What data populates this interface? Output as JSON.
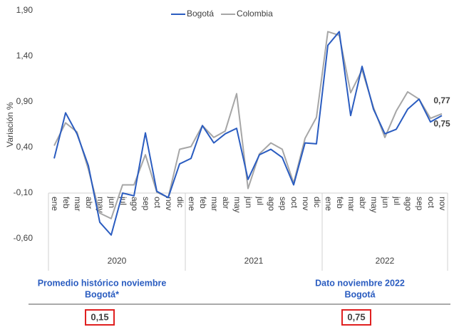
{
  "chart_data": {
    "type": "line",
    "y_label": "Variación %",
    "categories": [
      "ene",
      "feb",
      "mar",
      "abr",
      "may",
      "jun",
      "jul",
      "ago",
      "sep",
      "oct",
      "nov",
      "dic",
      "ene",
      "feb",
      "mar",
      "abr",
      "may",
      "jun",
      "jul",
      "ago",
      "sep",
      "oct",
      "nov",
      "dic",
      "ene",
      "feb",
      "mar",
      "abr",
      "may",
      "jun",
      "jul",
      "ago",
      "sep",
      "oct",
      "nov"
    ],
    "groups": [
      {
        "name": "2020",
        "count": 12
      },
      {
        "name": "2021",
        "count": 12
      },
      {
        "name": "2022",
        "count": 11
      }
    ],
    "series": [
      {
        "name": "Bogotá",
        "color": "#2a5cc0",
        "values": [
          0.28,
          0.78,
          0.55,
          0.2,
          -0.42,
          -0.56,
          -0.1,
          -0.13,
          0.56,
          -0.08,
          -0.15,
          0.22,
          0.28,
          0.64,
          0.45,
          0.55,
          0.61,
          0.05,
          0.32,
          0.38,
          0.29,
          -0.01,
          0.45,
          0.44,
          1.52,
          1.67,
          0.75,
          1.29,
          0.82,
          0.55,
          0.6,
          0.82,
          0.93,
          0.68,
          0.75
        ],
        "value_labels": [
          null,
          null,
          null,
          null,
          null,
          null,
          null,
          null,
          null,
          null,
          null,
          null,
          null,
          null,
          null,
          null,
          null,
          null,
          null,
          null,
          null,
          null,
          null,
          null,
          null,
          null,
          null,
          null,
          null,
          null,
          null,
          null,
          null,
          null,
          "0,75"
        ]
      },
      {
        "name": "Colombia",
        "color": "#a6a6a6",
        "values": [
          0.42,
          0.67,
          0.57,
          0.16,
          -0.32,
          -0.38,
          -0.01,
          -0.01,
          0.32,
          -0.09,
          -0.15,
          0.38,
          0.41,
          0.64,
          0.51,
          0.58,
          0.99,
          -0.05,
          0.33,
          0.45,
          0.38,
          0.01,
          0.5,
          0.73,
          1.67,
          1.63,
          1.0,
          1.25,
          0.84,
          0.51,
          0.8,
          1.01,
          0.93,
          0.72,
          0.77
        ],
        "value_labels": [
          null,
          null,
          null,
          null,
          null,
          null,
          null,
          null,
          null,
          null,
          null,
          null,
          null,
          null,
          null,
          null,
          null,
          null,
          null,
          null,
          null,
          null,
          null,
          null,
          null,
          null,
          null,
          null,
          null,
          null,
          null,
          null,
          null,
          null,
          "0,77"
        ]
      }
    ],
    "ylim": [
      -0.6,
      1.9
    ],
    "yticks": [
      {
        "value": -0.6,
        "label": "-0,60"
      },
      {
        "value": -0.1,
        "label": "-0,10"
      },
      {
        "value": 0.4,
        "label": "0,40"
      },
      {
        "value": 0.9,
        "label": "0,90"
      },
      {
        "value": 1.4,
        "label": "1,40"
      },
      {
        "value": 1.9,
        "label": "1,90"
      }
    ],
    "x_axis_crosses": -0.1,
    "legend": "top"
  },
  "footer": {
    "left": {
      "title": [
        "Promedio histórico noviembre",
        "Bogotá*"
      ],
      "value": "0,15"
    },
    "right": {
      "title": [
        "Dato noviembre 2022",
        "Bogotá"
      ],
      "value": "0,75"
    }
  }
}
